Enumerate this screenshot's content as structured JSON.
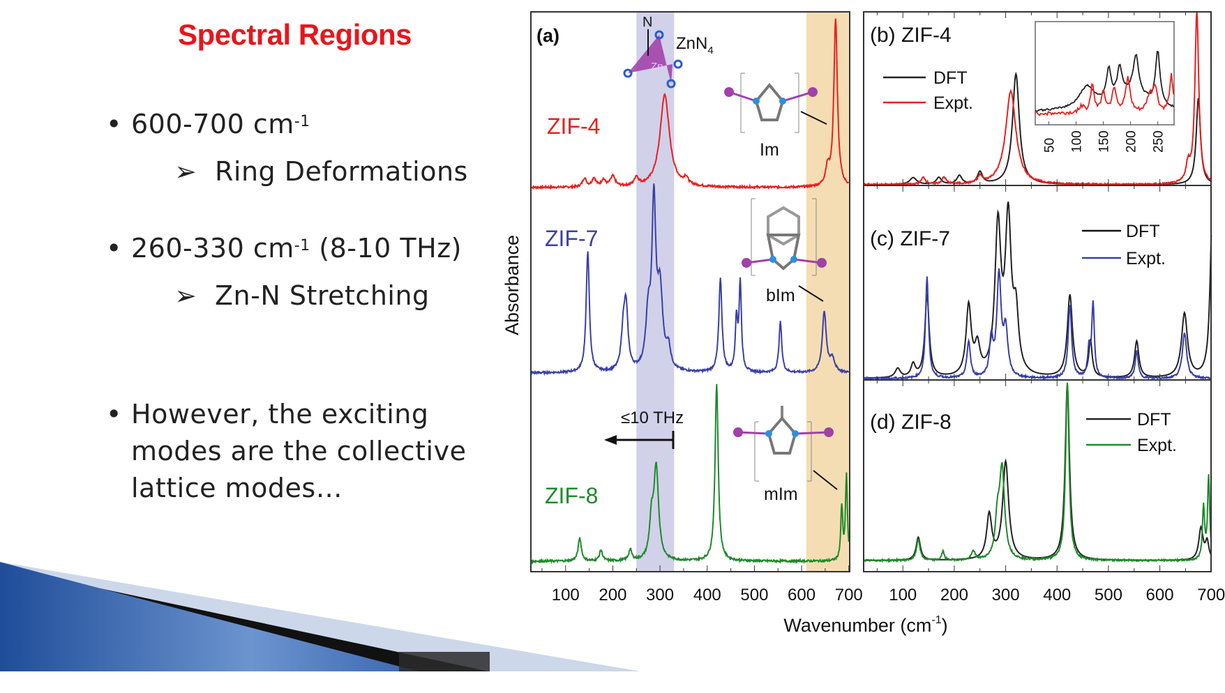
{
  "slide": {
    "title": "Spectral Regions",
    "bullets": [
      {
        "text": "600-700 cm",
        "sup": "-1",
        "tail": "",
        "sub": "Ring Deformations"
      },
      {
        "text": "260-330 cm",
        "sup": "-1",
        "tail": " (8-10 THz)",
        "sub": "Zn-N Stretching"
      },
      {
        "lines": [
          "However, the exciting",
          "modes are the collective",
          "lattice modes…"
        ]
      }
    ],
    "bullet_glyph": "•",
    "sub_glyph": "➢"
  },
  "chart_data": {
    "type": "line",
    "xlabel": "Wavenumber (cm",
    "xlabel_sup": "-1",
    "xlabel_close": ")",
    "ylabel": "Absorbance",
    "xlim": [
      25,
      700
    ],
    "x_ticks": [
      100,
      200,
      300,
      400,
      500,
      600,
      700
    ],
    "colors": {
      "ZIF-4": "#e8201e",
      "ZIF-7": "#3a3fa8",
      "ZIF-8": "#1f8a2a",
      "DFT": "#222222",
      "band_zn_n": "#c9c9e6",
      "band_ring": "#f3d7a6"
    },
    "panel_a": {
      "label": "(a)",
      "bands": [
        {
          "name": "Zn-N stretching",
          "from": 250,
          "to": 330
        },
        {
          "name": "ring deformations",
          "from": 610,
          "to": 700
        }
      ],
      "annotations": {
        "zn_n4": "ZnN",
        "zn_n4_sub": "4",
        "n": "N",
        "zn": "Zn",
        "im": "Im",
        "bim": "bIm",
        "mim": "mIm",
        "thz": "≤10 THz"
      },
      "series": [
        {
          "name": "ZIF-4",
          "peaks": [
            [
              140,
              0.05,
              5
            ],
            [
              160,
              0.05,
              5
            ],
            [
              180,
              0.04,
              5
            ],
            [
              200,
              0.06,
              6
            ],
            [
              250,
              0.05,
              5
            ],
            [
              310,
              0.54,
              12
            ],
            [
              355,
              0.04,
              5
            ],
            [
              655,
              0.1,
              5
            ],
            [
              672,
              0.98,
              4.5
            ]
          ]
        },
        {
          "name": "ZIF-7",
          "peaks": [
            [
              147,
              0.72,
              4
            ],
            [
              222,
              0.2,
              5
            ],
            [
              228,
              0.36,
              5
            ],
            [
              275,
              0.3,
              6
            ],
            [
              287,
              0.95,
              5
            ],
            [
              300,
              0.45,
              7
            ],
            [
              318,
              0.12,
              5
            ],
            [
              428,
              0.55,
              4
            ],
            [
              462,
              0.3,
              3
            ],
            [
              470,
              0.52,
              3
            ],
            [
              555,
              0.3,
              3.5
            ],
            [
              648,
              0.36,
              5
            ],
            [
              665,
              0.08,
              6
            ]
          ]
        },
        {
          "name": "ZIF-8",
          "peaks": [
            [
              130,
              0.13,
              4
            ],
            [
              175,
              0.06,
              4
            ],
            [
              237,
              0.06,
              4
            ],
            [
              282,
              0.2,
              5
            ],
            [
              292,
              0.52,
              6
            ],
            [
              420,
              1.0,
              4
            ],
            [
              685,
              0.3,
              2.5
            ],
            [
              695,
              0.48,
              2.5
            ]
          ]
        }
      ]
    },
    "panels": [
      {
        "label": "(b) ZIF-4",
        "legend": [
          "DFT",
          "Expt."
        ],
        "dft": [
          [
            120,
            0.04,
            8
          ],
          [
            170,
            0.04,
            6
          ],
          [
            210,
            0.05,
            6
          ],
          [
            250,
            0.07,
            6
          ],
          [
            320,
            0.64,
            8
          ],
          [
            675,
            0.5,
            5
          ]
        ],
        "expt": [
          [
            140,
            0.04,
            5
          ],
          [
            180,
            0.04,
            5
          ],
          [
            250,
            0.04,
            5
          ],
          [
            310,
            0.54,
            12
          ],
          [
            655,
            0.1,
            5
          ],
          [
            672,
            1.0,
            4.5
          ]
        ],
        "inset": {
          "x_ticks": [
            "50",
            "100",
            "150",
            "200",
            "250"
          ],
          "xlim": [
            25,
            280
          ]
        }
      },
      {
        "label": "(c) ZIF-7",
        "legend": [
          "DFT",
          "Expt."
        ],
        "dft": [
          [
            90,
            0.05,
            6
          ],
          [
            120,
            0.07,
            5
          ],
          [
            147,
            0.45,
            5
          ],
          [
            228,
            0.38,
            6
          ],
          [
            245,
            0.15,
            6
          ],
          [
            285,
            0.8,
            7
          ],
          [
            305,
            0.83,
            7
          ],
          [
            320,
            0.3,
            6
          ],
          [
            425,
            0.45,
            6
          ],
          [
            465,
            0.2,
            4
          ],
          [
            555,
            0.2,
            5
          ],
          [
            648,
            0.35,
            7
          ],
          [
            702,
            0.9,
            5
          ]
        ],
        "expt": [
          [
            147,
            0.55,
            3.5
          ],
          [
            228,
            0.2,
            4
          ],
          [
            272,
            0.2,
            4
          ],
          [
            287,
            0.55,
            5
          ],
          [
            300,
            0.25,
            5
          ],
          [
            425,
            0.4,
            4
          ],
          [
            462,
            0.15,
            3
          ],
          [
            470,
            0.4,
            3
          ],
          [
            555,
            0.15,
            3.5
          ],
          [
            648,
            0.25,
            5
          ]
        ]
      },
      {
        "label": "(d) ZIF-8",
        "legend": [
          "DFT",
          "Expt."
        ],
        "dft": [
          [
            130,
            0.13,
            5
          ],
          [
            268,
            0.25,
            6
          ],
          [
            300,
            0.55,
            7
          ],
          [
            420,
            0.99,
            5
          ],
          [
            680,
            0.18,
            5
          ],
          [
            692,
            0.1,
            4
          ]
        ],
        "expt": [
          [
            130,
            0.12,
            4
          ],
          [
            178,
            0.05,
            3
          ],
          [
            237,
            0.05,
            4
          ],
          [
            284,
            0.2,
            5
          ],
          [
            293,
            0.5,
            6
          ],
          [
            420,
            1.0,
            4
          ],
          [
            685,
            0.3,
            2.5
          ],
          [
            695,
            0.47,
            2.5
          ]
        ]
      }
    ]
  }
}
